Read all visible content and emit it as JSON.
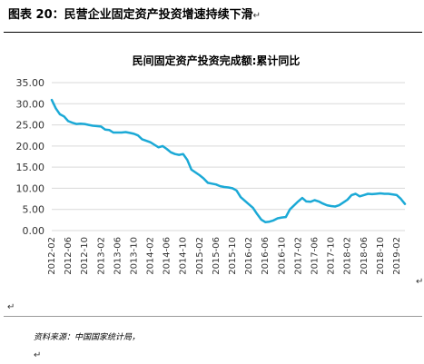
{
  "document": {
    "figure_title": "图表 20：民营企业固定资产投资增速持续下滑",
    "source_note": "资料来源：中国国家统计局，",
    "paragraph_mark": "↵"
  },
  "chart_data": {
    "type": "line",
    "title": "民间固定资产投资完成额:累计同比",
    "xlabel": "",
    "ylabel": "",
    "ylim": [
      0,
      35
    ],
    "yticks": [
      "0.00",
      "5.00",
      "10.00",
      "15.00",
      "20.00",
      "25.00",
      "30.00",
      "35.00"
    ],
    "grid": true,
    "legend": "none",
    "line_color": "#1ba9d6",
    "x_tick_labels": [
      "2012-02",
      "2012-06",
      "2012-10",
      "2013-02",
      "2013-06",
      "2013-10",
      "2014-02",
      "2014-06",
      "2014-10",
      "2015-02",
      "2015-06",
      "2015-10",
      "2016-02",
      "2016-06",
      "2016-10",
      "2017-02",
      "2017-06",
      "2017-10",
      "2018-02",
      "2018-06",
      "2018-10",
      "2019-02"
    ],
    "series": [
      {
        "x": [
          "2012-02",
          "2012-03",
          "2012-04",
          "2012-05",
          "2012-06",
          "2012-07",
          "2012-08",
          "2012-09",
          "2012-10",
          "2012-11",
          "2012-12",
          "2013-02",
          "2013-03",
          "2013-04",
          "2013-05",
          "2013-06",
          "2013-07",
          "2013-08",
          "2013-09",
          "2013-10",
          "2013-11",
          "2013-12",
          "2014-02",
          "2014-03",
          "2014-04",
          "2014-05",
          "2014-06",
          "2014-07",
          "2014-08",
          "2014-09",
          "2014-10",
          "2014-11",
          "2014-12",
          "2015-02",
          "2015-03",
          "2015-04",
          "2015-05",
          "2015-06",
          "2015-07",
          "2015-08",
          "2015-09",
          "2015-10",
          "2015-11",
          "2015-12",
          "2016-02",
          "2016-03",
          "2016-04",
          "2016-05",
          "2016-06",
          "2016-07",
          "2016-08",
          "2016-09",
          "2016-10",
          "2016-11",
          "2016-12",
          "2017-02",
          "2017-03",
          "2017-04",
          "2017-05",
          "2017-06",
          "2017-07",
          "2017-08",
          "2017-09",
          "2017-10",
          "2017-11",
          "2017-12",
          "2018-02",
          "2018-03",
          "2018-04",
          "2018-05",
          "2018-06",
          "2018-07",
          "2018-08",
          "2018-09",
          "2018-10",
          "2018-11",
          "2018-12",
          "2019-02",
          "2019-03",
          "2019-04"
        ],
        "values": [
          30.9,
          28.9,
          27.5,
          27.0,
          25.9,
          25.5,
          25.2,
          25.3,
          25.2,
          25.0,
          24.8,
          24.6,
          23.9,
          23.8,
          23.2,
          23.2,
          23.2,
          23.3,
          23.1,
          22.9,
          22.5,
          21.6,
          20.9,
          20.3,
          19.7,
          20.0,
          19.3,
          18.5,
          18.1,
          17.9,
          18.1,
          16.7,
          14.4,
          13.1,
          12.3,
          11.3,
          11.1,
          10.9,
          10.5,
          10.3,
          10.2,
          10.0,
          9.5,
          7.9,
          6.2,
          5.4,
          3.9,
          2.6,
          2.0,
          2.1,
          2.4,
          2.9,
          3.1,
          3.2,
          5.0,
          6.9,
          7.7,
          6.9,
          6.8,
          7.2,
          6.9,
          6.4,
          6.0,
          5.8,
          5.7,
          6.0,
          7.3,
          8.4,
          8.7,
          8.1,
          8.4,
          8.7,
          8.6,
          8.7,
          8.8,
          8.7,
          8.7,
          8.4,
          7.5,
          6.3
        ]
      }
    ]
  }
}
